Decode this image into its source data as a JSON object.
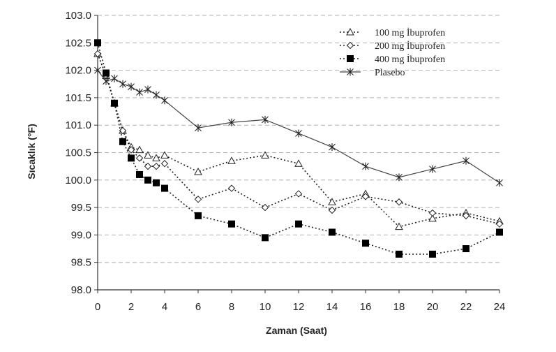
{
  "chart_data": {
    "type": "line",
    "xlabel": "Zaman (Saat)",
    "ylabel": "Sıcaklık (°F)",
    "xlim": [
      0,
      24
    ],
    "ylim": [
      98.0,
      103.0
    ],
    "x_ticks": [
      0,
      2,
      4,
      6,
      8,
      10,
      12,
      14,
      16,
      18,
      20,
      22,
      24
    ],
    "y_ticks": [
      "98.0",
      "98.5",
      "99.0",
      "99.5",
      "100.0",
      "100.5",
      "101.0",
      "101.5",
      "102.0",
      "102.5",
      "103.0"
    ],
    "grid": "horizontal-dashed",
    "legend_position": "top-right",
    "series": [
      {
        "name": "100 mg İbuprofen",
        "marker": "triangle",
        "line": "dotted",
        "points": [
          [
            0,
            102.3
          ],
          [
            0.5,
            101.9
          ],
          [
            1,
            101.4
          ],
          [
            1.5,
            100.9
          ],
          [
            2,
            100.6
          ],
          [
            2.5,
            100.55
          ],
          [
            3,
            100.45
          ],
          [
            3.5,
            100.4
          ],
          [
            4,
            100.45
          ],
          [
            6,
            100.15
          ],
          [
            8,
            100.35
          ],
          [
            10,
            100.45
          ],
          [
            12,
            100.3
          ],
          [
            14,
            99.6
          ],
          [
            16,
            99.75
          ],
          [
            18,
            99.15
          ],
          [
            20,
            99.3
          ],
          [
            22,
            99.4
          ],
          [
            24,
            99.25
          ]
        ]
      },
      {
        "name": "200 mg İbuprofen",
        "marker": "diamond",
        "line": "dotted",
        "points": [
          [
            0,
            102.3
          ],
          [
            0.5,
            101.9
          ],
          [
            1,
            101.4
          ],
          [
            1.5,
            100.9
          ],
          [
            2,
            100.55
          ],
          [
            2.5,
            100.4
          ],
          [
            3,
            100.25
          ],
          [
            3.5,
            100.25
          ],
          [
            4,
            100.3
          ],
          [
            6,
            99.65
          ],
          [
            8,
            99.85
          ],
          [
            10,
            99.5
          ],
          [
            12,
            99.75
          ],
          [
            14,
            99.45
          ],
          [
            16,
            99.7
          ],
          [
            18,
            99.6
          ],
          [
            20,
            99.4
          ],
          [
            22,
            99.35
          ],
          [
            24,
            99.2
          ]
        ]
      },
      {
        "name": "400 mg İbuprofen",
        "marker": "square-filled",
        "line": "dotted",
        "points": [
          [
            0,
            102.5
          ],
          [
            0.5,
            101.95
          ],
          [
            1,
            101.4
          ],
          [
            1.5,
            100.7
          ],
          [
            2,
            100.4
          ],
          [
            2.5,
            100.1
          ],
          [
            3,
            100.0
          ],
          [
            3.5,
            99.95
          ],
          [
            4,
            99.85
          ],
          [
            6,
            99.35
          ],
          [
            8,
            99.2
          ],
          [
            10,
            98.95
          ],
          [
            12,
            99.2
          ],
          [
            14,
            99.05
          ],
          [
            16,
            98.85
          ],
          [
            18,
            98.65
          ],
          [
            20,
            98.65
          ],
          [
            22,
            98.75
          ],
          [
            24,
            99.05
          ]
        ]
      },
      {
        "name": "Plasebo",
        "marker": "star",
        "line": "solid",
        "points": [
          [
            0,
            102.0
          ],
          [
            0.5,
            101.8
          ],
          [
            1,
            101.85
          ],
          [
            1.5,
            101.75
          ],
          [
            2,
            101.7
          ],
          [
            2.5,
            101.6
          ],
          [
            3,
            101.65
          ],
          [
            3.5,
            101.55
          ],
          [
            4,
            101.45
          ],
          [
            6,
            100.95
          ],
          [
            8,
            101.05
          ],
          [
            10,
            101.1
          ],
          [
            12,
            100.85
          ],
          [
            14,
            100.6
          ],
          [
            16,
            100.25
          ],
          [
            18,
            100.05
          ],
          [
            20,
            100.2
          ],
          [
            22,
            100.35
          ],
          [
            24,
            99.95
          ]
        ]
      }
    ]
  }
}
